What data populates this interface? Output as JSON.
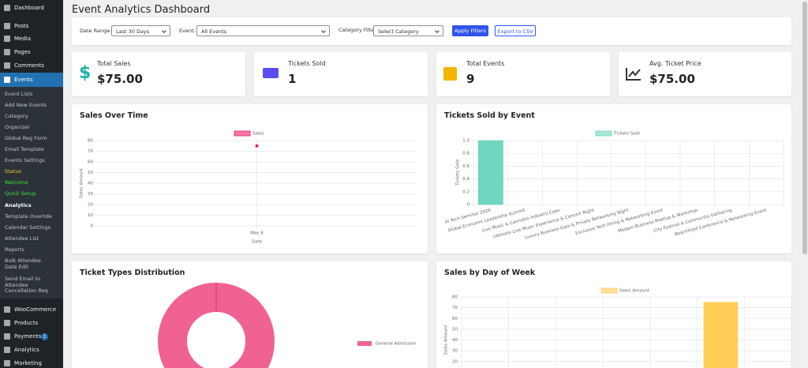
{
  "sidebar": {
    "top": [
      "Dashboard",
      "Posts",
      "Media",
      "Pages",
      "Comments",
      "Events"
    ],
    "submenu": [
      "Event Lists",
      "Add New Events",
      "Category",
      "Organizer",
      "Global Reg Form",
      "Email Template",
      "Events Settings",
      "Status",
      "Welcome",
      "Quick Setup",
      "Analytics",
      "Template Override",
      "Calendar Settings",
      "Attendee List",
      "Reports",
      "Bulk Attendee Date Edit",
      "Send Email to Attendee",
      "Cancellation Req"
    ],
    "bottom": [
      "WooCommerce",
      "Products",
      "Payments",
      "Analytics",
      "Marketing"
    ],
    "badge": "1"
  },
  "header": {
    "title": "Event Analytics Dashboard"
  },
  "filters": {
    "date_range_label": "Date Range:",
    "date_range": "Last 30 Days",
    "event_label": "Event:",
    "event": "All Events",
    "category_label": "Category Filter",
    "category": "Select Category",
    "apply": "Apply Filters",
    "export": "Export to CSV"
  },
  "cards": [
    {
      "label": "Total Sales",
      "value": "$75.00"
    },
    {
      "label": "Tickets Sold",
      "value": "1"
    },
    {
      "label": "Total Events",
      "value": "9"
    },
    {
      "label": "Avg. Ticket Price",
      "value": "$75.00"
    }
  ],
  "charts": [
    {
      "type": "line",
      "title": "Sales Over Time",
      "categories": [
        "May 8"
      ],
      "series": [
        {
          "name": "Sales",
          "color": "#e91e63",
          "values": [
            75
          ]
        }
      ],
      "ylim": [
        0,
        80
      ],
      "yticks": [
        0,
        10,
        20,
        30,
        40,
        50,
        60,
        70,
        80
      ],
      "y_label": "Sales Amount",
      "x_label": "Date",
      "grid": true
    },
    {
      "type": "bar",
      "title": "Tickets Sold by Event",
      "categories": [
        "AI Tech Seminar 2026",
        "Global Economic Leadership Summit",
        "Live Music & Cannabis Industry Expo",
        "Ultimate Live Music Experience & Concert Night",
        "Luxury Business Gala & Private Networking Night",
        "Exclusive Tech Hiring & Networking Event",
        "Modern Business Meetup & Workshop",
        "City Festival & Community Gathering",
        "Beachfront Conference & Networking Event"
      ],
      "series": [
        {
          "name": "Tickets Sold",
          "color": "#6fd6c0",
          "values": [
            1,
            0,
            0,
            0,
            0,
            0,
            0,
            0,
            0
          ]
        }
      ],
      "ylim": [
        0,
        1
      ],
      "yticks": [
        0,
        0.2,
        0.4,
        0.6,
        0.8,
        {
          "value": 1,
          "label": "1.0"
        }
      ],
      "y_label": "Tickets Sold",
      "grid": true
    },
    {
      "type": "doughnut",
      "title": "Ticket Types Distribution",
      "categories": [
        "General Admission"
      ],
      "series": [
        {
          "color": "#f06292",
          "values": [
            1
          ]
        }
      ]
    },
    {
      "type": "bar",
      "title": "Sales by Day of Week",
      "categories": [
        null,
        null,
        null,
        null,
        null,
        null,
        null
      ],
      "series": [
        {
          "name": "Sales Amount",
          "color": "#ffcd56",
          "values": [
            0,
            0,
            0,
            0,
            0,
            75,
            0
          ]
        }
      ],
      "ylim": [
        0,
        80
      ],
      "yticks": [
        20,
        30,
        40,
        50,
        60,
        70,
        80
      ],
      "y_label": "Sales Amount",
      "grid": true
    }
  ]
}
